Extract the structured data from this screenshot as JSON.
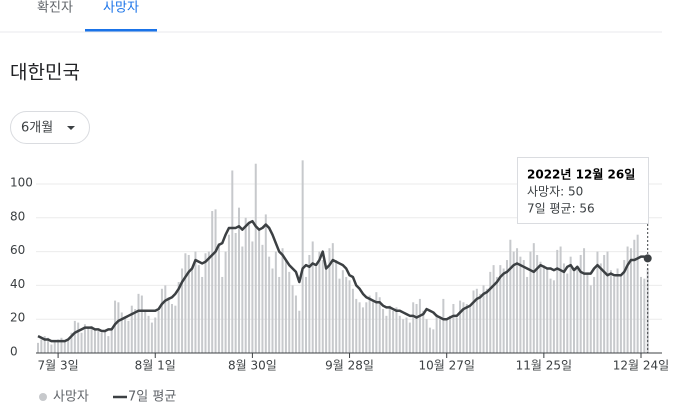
{
  "tabs": [
    "확진자",
    "사망자"
  ],
  "region": "대한민국",
  "dropdown": "6개월",
  "tooltip": {
    "date": "2022년 12월 26일",
    "lines": [
      "사망자: 50",
      "7일 평균: 56"
    ]
  },
  "chart_data": {
    "type": "bar",
    "categories": [
      null,
      null,
      null,
      null,
      null,
      null,
      "7월 3일",
      null,
      null,
      null,
      null,
      null,
      null,
      null,
      null,
      null,
      null,
      null,
      null,
      null,
      null,
      null,
      null,
      null,
      null,
      null,
      null,
      null,
      null,
      null,
      null,
      null,
      null,
      null,
      null,
      "8월 1일",
      null,
      null,
      null,
      null,
      null,
      null,
      null,
      null,
      null,
      null,
      null,
      null,
      null,
      null,
      null,
      null,
      null,
      null,
      null,
      null,
      null,
      null,
      null,
      null,
      null,
      null,
      null,
      null,
      "8월 30일",
      null,
      null,
      null,
      null,
      null,
      null,
      null,
      null,
      null,
      null,
      null,
      null,
      null,
      null,
      null,
      null,
      null,
      null,
      null,
      null,
      null,
      null,
      null,
      null,
      null,
      null,
      null,
      null,
      "9월 28일",
      null,
      null,
      null,
      null,
      null,
      null,
      null,
      null,
      null,
      null,
      null,
      null,
      null,
      null,
      null,
      null,
      null,
      null,
      null,
      null,
      null,
      null,
      null,
      null,
      null,
      null,
      null,
      null,
      "10월 27일",
      null,
      null,
      null,
      null,
      null,
      null,
      null,
      null,
      null,
      null,
      null,
      null,
      null,
      null,
      null,
      null,
      null,
      null,
      null,
      null,
      null,
      null,
      null,
      null,
      null,
      null,
      null,
      null,
      "11월 25일",
      null,
      null,
      null,
      null,
      null,
      null,
      null,
      null,
      null,
      null,
      null,
      null,
      null,
      null,
      null,
      null,
      null,
      null,
      null,
      null,
      null,
      null,
      null,
      null,
      null,
      null,
      null,
      null,
      "12월 24일",
      null,
      null
    ],
    "series": [
      {
        "name": "사망자",
        "type": "bar",
        "color": "#c7c9cc",
        "values": [
          6,
          8,
          10,
          9,
          5,
          7,
          8,
          9,
          7,
          8,
          12,
          19,
          18,
          12,
          17,
          15,
          16,
          14,
          13,
          12,
          13,
          10,
          14,
          31,
          30,
          24,
          21,
          19,
          28,
          26,
          35,
          34,
          25,
          22,
          18,
          21,
          25,
          38,
          40,
          33,
          29,
          28,
          42,
          50,
          59,
          58,
          50,
          60,
          52,
          45,
          59,
          60,
          84,
          85,
          65,
          45,
          60,
          70,
          108,
          71,
          86,
          63,
          80,
          76,
          66,
          112,
          73,
          64,
          82,
          57,
          50,
          60,
          45,
          62,
          55,
          48,
          40,
          34,
          25,
          114,
          45,
          58,
          66,
          51,
          60,
          55,
          50,
          62,
          65,
          55,
          44,
          49,
          45,
          43,
          38,
          32,
          30,
          27,
          30,
          34,
          30,
          36,
          33,
          26,
          22,
          28,
          25,
          27,
          22,
          20,
          21,
          18,
          30,
          29,
          32,
          25,
          20,
          15,
          14,
          23,
          20,
          32,
          20,
          22,
          29,
          21,
          31,
          30,
          29,
          28,
          37,
          38,
          35,
          40,
          38,
          48,
          52,
          45,
          52,
          50,
          55,
          67,
          60,
          62,
          57,
          55,
          45,
          60,
          65,
          58,
          54,
          52,
          50,
          44,
          43,
          61,
          63,
          53,
          47,
          57,
          48,
          50,
          58,
          62,
          47,
          40,
          45,
          60,
          53,
          58,
          60,
          49,
          45,
          50,
          46,
          55,
          63,
          62,
          67,
          70,
          45,
          44,
          50
        ]
      },
      {
        "name": "7일 평균",
        "type": "line",
        "color": "#3c4043",
        "values": [
          10,
          9,
          8,
          8,
          7,
          7,
          7,
          7,
          7,
          8,
          10,
          12,
          13,
          14,
          15,
          15,
          15,
          14,
          14,
          13,
          13,
          14,
          14,
          17,
          19,
          20,
          21,
          22,
          23,
          24,
          25,
          25,
          25,
          25,
          25,
          25,
          26,
          29,
          31,
          32,
          33,
          35,
          38,
          42,
          45,
          48,
          50,
          55,
          54,
          53,
          54,
          56,
          58,
          60,
          64,
          65,
          70,
          74,
          74,
          74,
          75,
          73,
          75,
          77,
          78,
          75,
          73,
          74,
          76,
          74,
          70,
          65,
          60,
          58,
          55,
          52,
          50,
          48,
          42,
          50,
          52,
          51,
          53,
          52,
          55,
          60,
          50,
          52,
          55,
          54,
          53,
          52,
          50,
          46,
          45,
          40,
          38,
          35,
          33,
          32,
          31,
          30,
          30,
          28,
          27,
          27,
          26,
          25,
          25,
          24,
          23,
          22,
          22,
          21,
          22,
          23,
          26,
          25,
          24,
          22,
          21,
          20,
          20,
          21,
          22,
          22,
          24,
          26,
          27,
          28,
          30,
          32,
          33,
          35,
          36,
          38,
          40,
          42,
          45,
          47,
          48,
          50,
          52,
          53,
          52,
          51,
          50,
          49,
          48,
          50,
          52,
          51,
          50,
          50,
          49,
          50,
          49,
          48,
          51,
          52,
          49,
          51,
          48,
          47,
          47,
          47,
          50,
          52,
          50,
          48,
          46,
          47,
          46,
          46,
          46,
          48,
          52,
          55,
          55,
          56,
          57,
          57,
          56
        ]
      }
    ],
    "ylim": [
      0,
      120
    ],
    "yticks": [
      0,
      20,
      40,
      60,
      80,
      100
    ],
    "grid": true
  }
}
